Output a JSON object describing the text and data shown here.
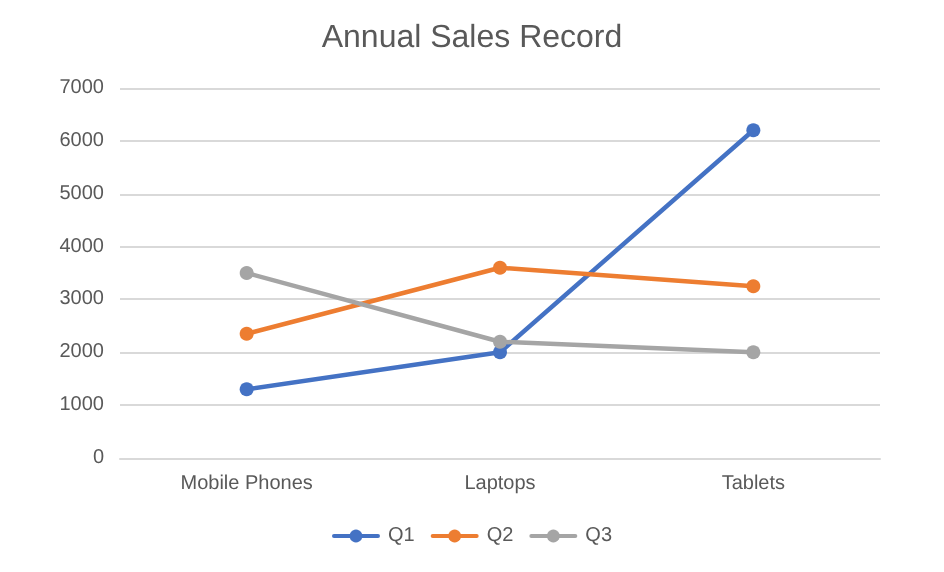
{
  "chart_data": {
    "type": "line",
    "title": "Annual Sales Record",
    "categories": [
      "Mobile Phones",
      "Laptops",
      "Tablets"
    ],
    "series": [
      {
        "name": "Q1",
        "color": "#4472c4",
        "values": [
          1300,
          2000,
          6200
        ]
      },
      {
        "name": "Q2",
        "color": "#ed7d31",
        "values": [
          2350,
          3600,
          3250
        ]
      },
      {
        "name": "Q3",
        "color": "#a5a5a5",
        "values": [
          3500,
          2200,
          2000
        ]
      }
    ],
    "ylim": [
      0,
      7000
    ],
    "yticks": [
      0,
      1000,
      2000,
      3000,
      4000,
      5000,
      6000,
      7000
    ],
    "grid": "y",
    "legend": "bottom",
    "marker": "circle"
  }
}
